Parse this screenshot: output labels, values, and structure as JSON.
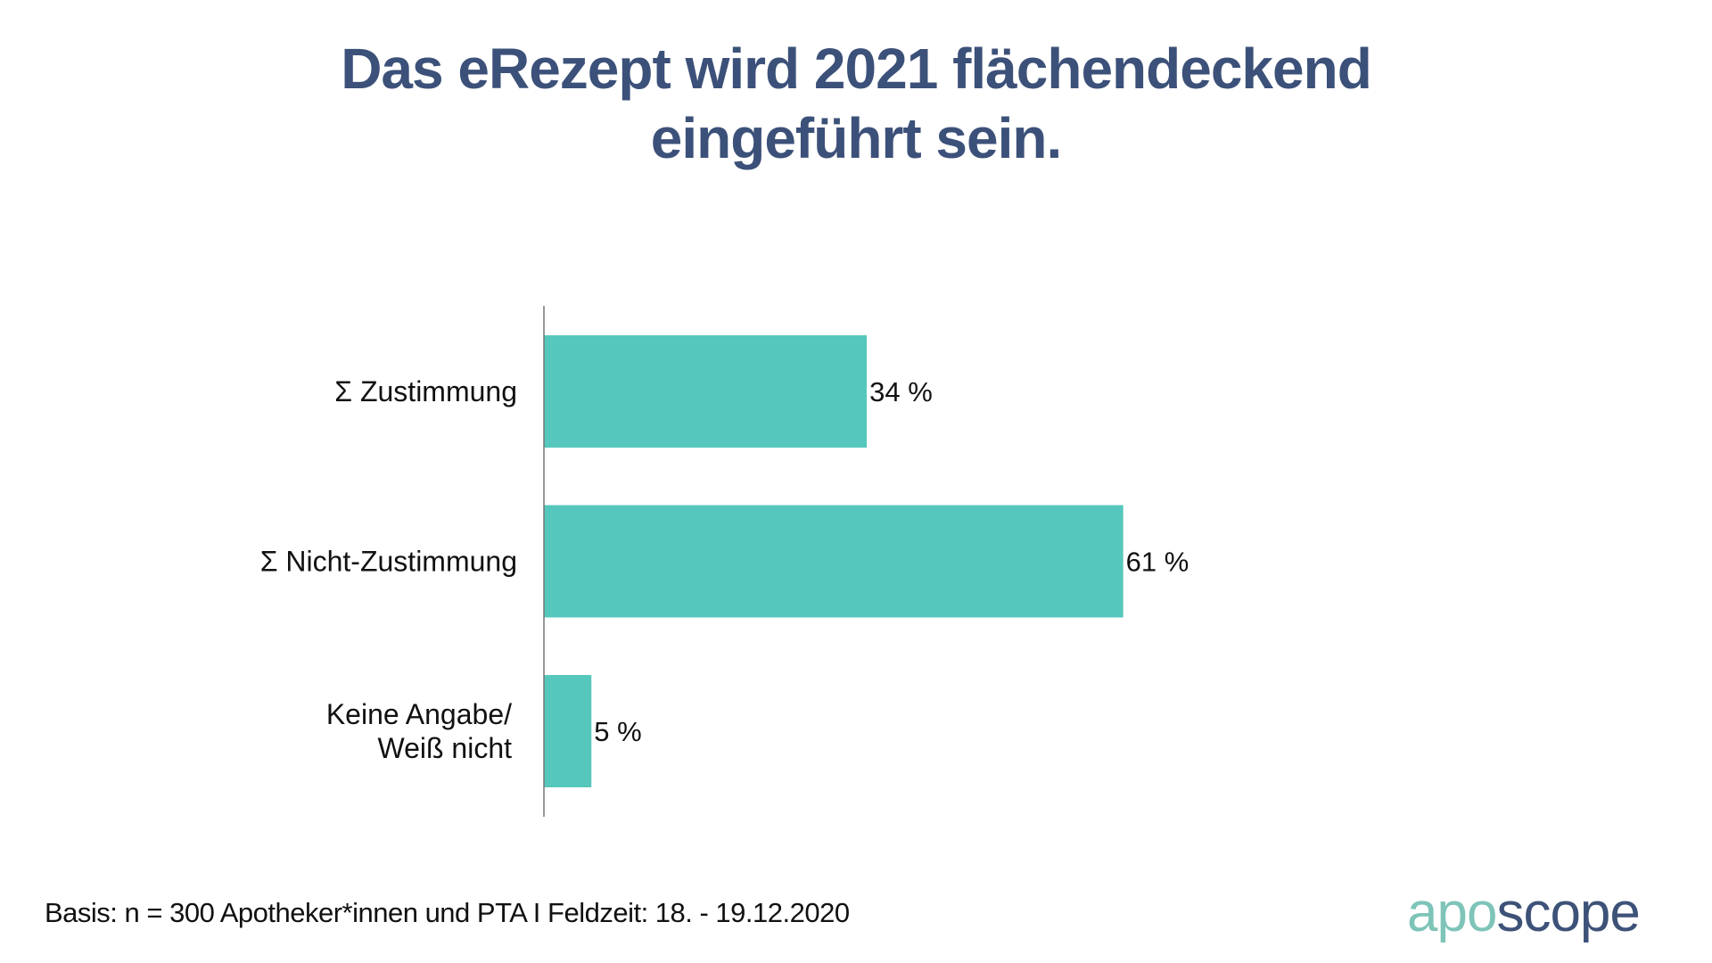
{
  "chart_data": {
    "type": "bar",
    "orientation": "horizontal",
    "title": "Das eRezept wird 2021 flächendeckend eingeführt sein.",
    "title_lines": [
      "Das eRezept wird 2021 flächendeckend",
      "eingeführt sein."
    ],
    "categories": [
      "Σ Zustimmung",
      "Σ Nicht-Zustimmung",
      "Keine Angabe/ Weiß nicht"
    ],
    "category_lines": [
      [
        "Σ Zustimmung"
      ],
      [
        "Σ Nicht-Zustimmung"
      ],
      [
        "Keine Angabe/",
        "Weiß nicht"
      ]
    ],
    "values": [
      34,
      61,
      5
    ],
    "value_labels": [
      "34 %",
      "61 %",
      "5 %"
    ],
    "unit": "%",
    "xlabel": "",
    "ylabel": "",
    "xlim": [
      0,
      100
    ],
    "grid": false,
    "legend": "none",
    "bar_color": "#56c7bc"
  },
  "footer": {
    "note": "Basis: n = 300 Apotheker*innen und PTA I Feldzeit: 18. - 19.12.2020"
  },
  "logo": {
    "part1": "apo",
    "part2": "scope",
    "color1": "#7ec4b8",
    "color2": "#3d5278"
  },
  "colors": {
    "title": "#3c5179",
    "text": "#111111",
    "axis": "#777777"
  }
}
